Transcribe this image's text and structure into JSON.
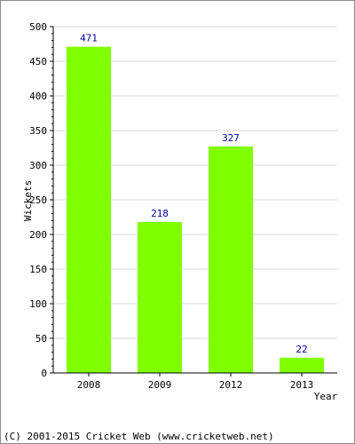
{
  "chart_data": {
    "type": "bar",
    "categories": [
      "2008",
      "2009",
      "2012",
      "2013"
    ],
    "values": [
      471,
      218,
      327,
      22
    ],
    "data_labels": [
      "471",
      "218",
      "327",
      "22"
    ],
    "xlabel": "Year",
    "ylabel": "Wickets",
    "ylim": [
      0,
      500
    ],
    "yticks": [
      0,
      50,
      100,
      150,
      200,
      250,
      300,
      350,
      400,
      450,
      500
    ],
    "ytick_labels": [
      "0",
      "50",
      "100",
      "150",
      "200",
      "250",
      "300",
      "350",
      "400",
      "450",
      "500"
    ],
    "grid": true,
    "bar_color": "#80ff00",
    "value_label_color": "#000099",
    "grid_color": "#d9d9d9"
  },
  "footer": {
    "copyright": "(C) 2001-2015 Cricket Web (www.cricketweb.net)"
  }
}
